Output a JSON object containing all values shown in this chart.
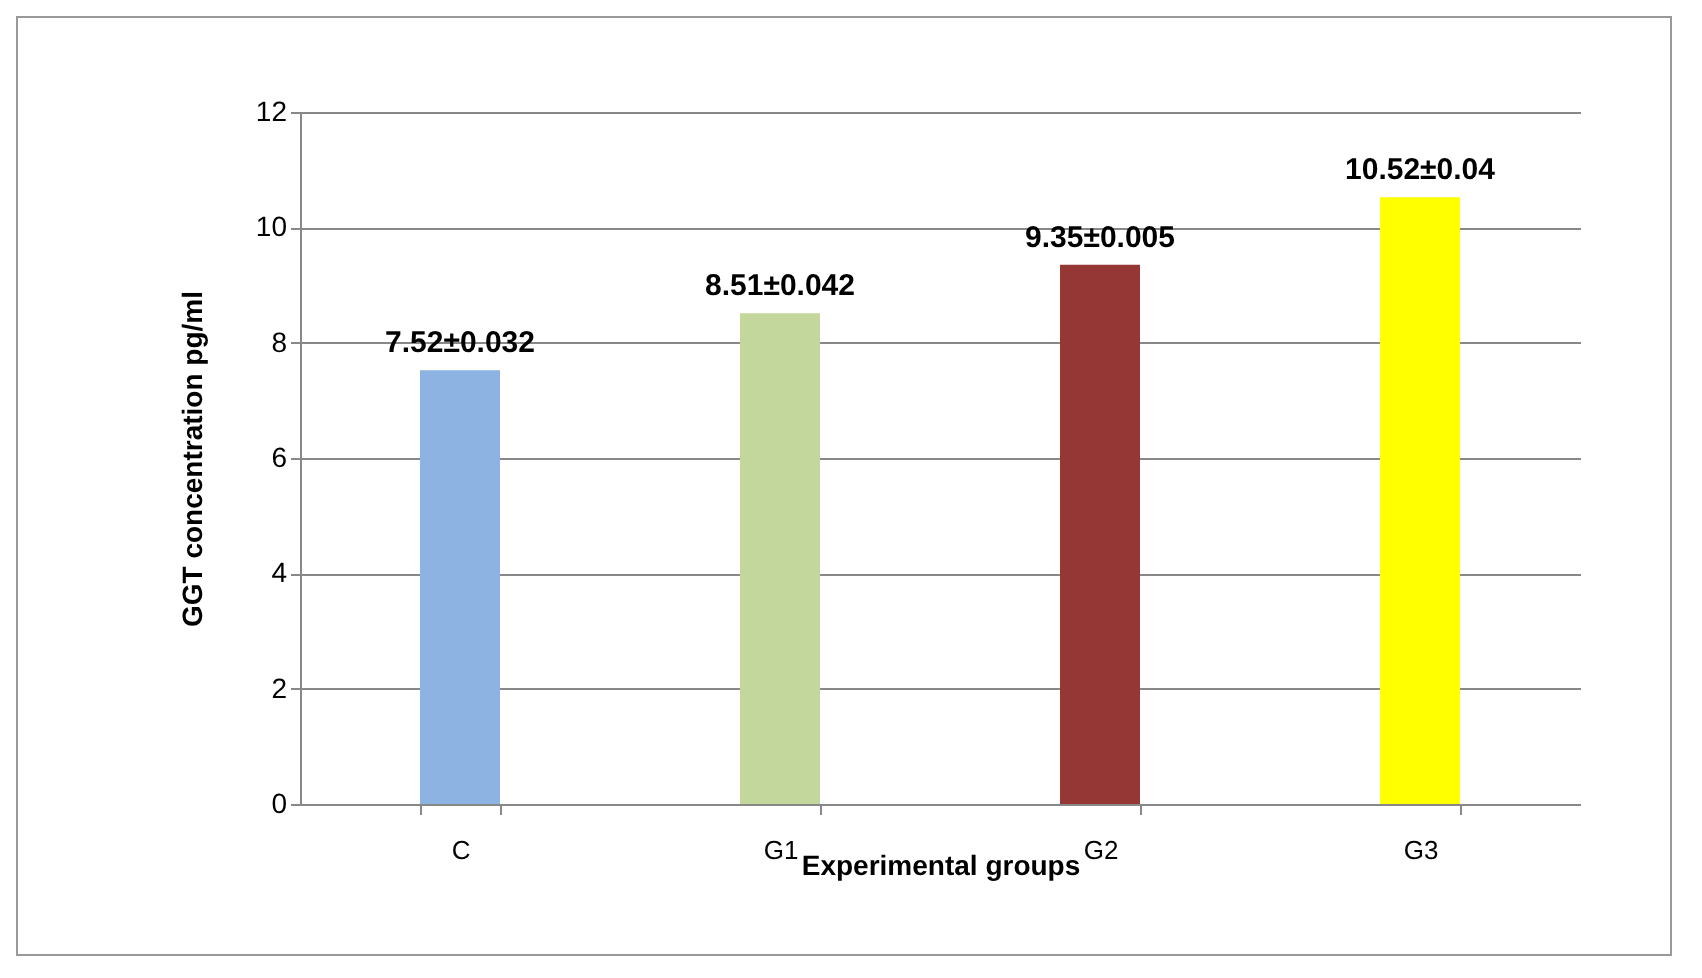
{
  "chart_data": {
    "type": "bar",
    "xlabel": "Experimental groups",
    "ylabel": "GGT concentration pg/ml",
    "categories": [
      "C",
      "G1",
      "G2",
      "G3"
    ],
    "values": [
      7.52,
      8.51,
      9.35,
      10.52
    ],
    "colors": [
      "#8db3e2",
      "#c3d69b",
      "#953735",
      "#ffff00"
    ],
    "value_labels": [
      "7.52±0.032",
      "8.51±0.042",
      "9.35±0.005",
      "10.52±0.04"
    ],
    "ylim": [
      0,
      12
    ],
    "yticks": [
      0,
      2,
      4,
      6,
      8,
      10,
      12
    ],
    "grid": "y"
  }
}
